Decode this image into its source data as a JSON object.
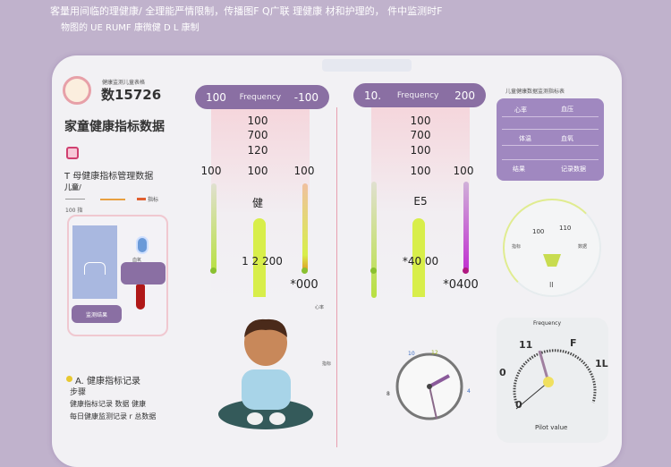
{
  "header": {
    "line1": "客量用间临的理健康/ 全理能严情限制，传播图F Q广联 理健康 材和护理的， 件中监测时F",
    "line2": "物图的 UE RUMF 康微健 D L 康制"
  },
  "left": {
    "logo_caption": "健康监测儿童表格",
    "id_label": "数15726",
    "title": "家童健康指标数据",
    "subtitle": "T 母健康指标管理数据",
    "sub_caption": "儿童/",
    "legend_label": "指标",
    "legend_caption": "100 指",
    "device_badge": "血氧",
    "device_button": "监测结果",
    "notes_title": "A. 健康指标记录",
    "notes_sub": "步骤",
    "notes_line1": "健康指标记录 数据 健康",
    "notes_line2": "每日健康监测记录 r 总数据"
  },
  "gauge1": {
    "left": "100",
    "label": "Frequency",
    "right": "-100",
    "ticks": [
      "100",
      "700",
      "120",
      "100"
    ],
    "side_left": "100",
    "side_right": "100",
    "center_label": "健",
    "readout": "1 2 200",
    "bottom": "*000",
    "bottom_caption": "结果"
  },
  "gauge2": {
    "left": "10.",
    "label": "Frequency",
    "right": "200",
    "ticks": [
      "100",
      "700",
      "100",
      "100"
    ],
    "side_right": "100",
    "center_label": "E5",
    "readout": "*40 00",
    "bottom": "*0400",
    "bottom_caption": "结果"
  },
  "divider_labels": [
    "心率",
    "指标",
    "数据",
    "记录"
  ],
  "stats": {
    "caption": "儿童健康数据监测指标表",
    "row1": [
      "心率",
      "血压"
    ],
    "row2": [
      "体温",
      "血氧"
    ],
    "row3": [
      "结果",
      "记录数据"
    ]
  },
  "dial": {
    "labels": [
      "100",
      "110"
    ],
    "left": "指标",
    "right": "数据",
    "bottom": "II"
  },
  "clock": {
    "labels": [
      "10",
      "12",
      "4",
      "8"
    ]
  },
  "speedo": {
    "title": "Frequency",
    "labels": [
      "11",
      "F",
      "1L",
      "0",
      "0"
    ],
    "caption": "Pilot value"
  },
  "colors": {
    "accent": "#8a6fa3",
    "lime": "#d8ee4a",
    "pink": "#e8a0b0"
  }
}
